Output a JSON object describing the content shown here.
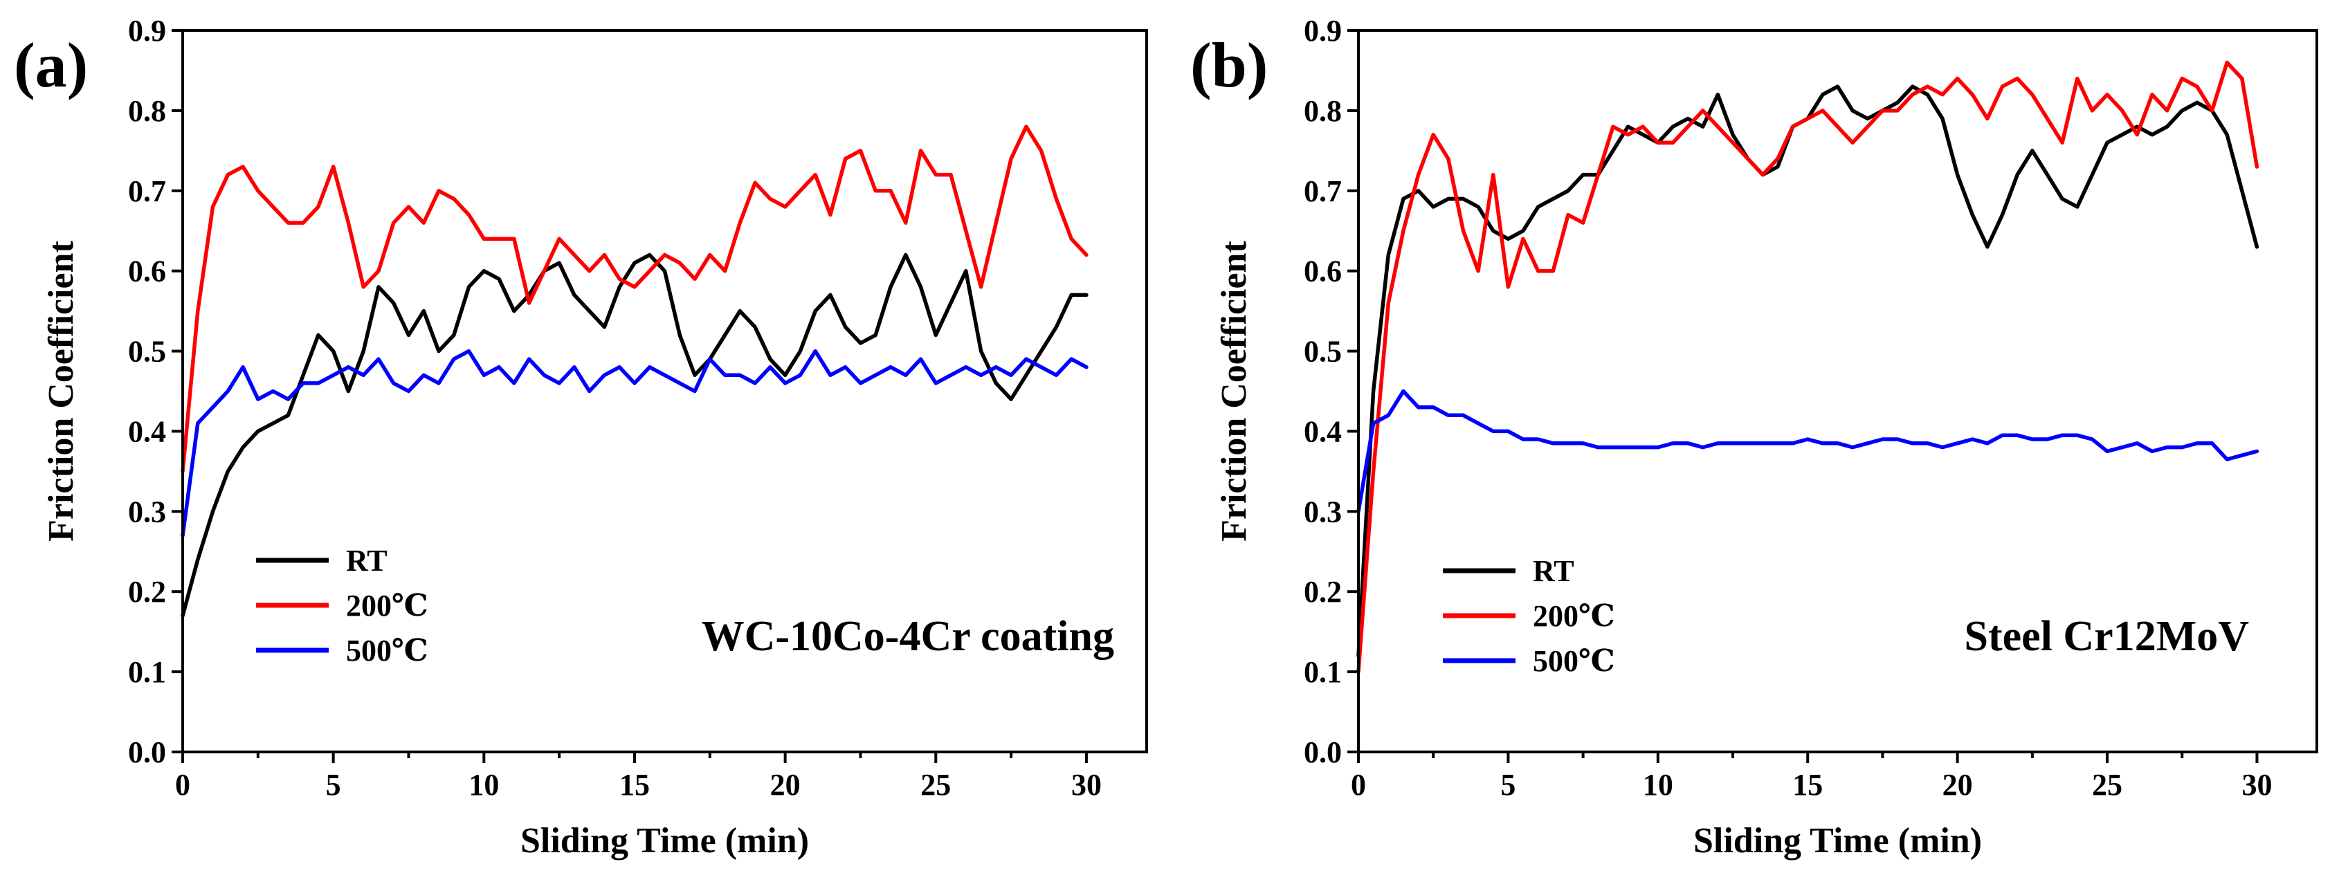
{
  "figure": {
    "panels": [
      "a",
      "b"
    ]
  },
  "chart_data": [
    {
      "type": "line",
      "panel_label": "(a)",
      "annotation": "WC-10Co-4Cr coating",
      "xlabel": "Sliding Time (min)",
      "ylabel": "Friction Coefficient",
      "xlim": [
        0,
        32
      ],
      "ylim": [
        0,
        0.9
      ],
      "xticks": [
        0,
        5,
        10,
        15,
        20,
        25,
        30
      ],
      "yticks": [
        0.0,
        0.1,
        0.2,
        0.3,
        0.4,
        0.5,
        0.6,
        0.7,
        0.8,
        0.9
      ],
      "ytick_labels": [
        "0.0",
        "0.1",
        "0.2",
        "0.3",
        "0.4",
        "0.5",
        "0.6",
        "0.7",
        "0.8",
        "0.9"
      ],
      "legend_position": "lower-left",
      "series": [
        {
          "name": "RT",
          "color": "#000000",
          "x": [
            0,
            0.5,
            1,
            1.5,
            2,
            2.5,
            3,
            3.5,
            4,
            4.5,
            5,
            5.5,
            6,
            6.5,
            7,
            7.5,
            8,
            8.5,
            9,
            9.5,
            10,
            10.5,
            11,
            11.5,
            12,
            12.5,
            13,
            13.5,
            14,
            14.5,
            15,
            15.5,
            16,
            16.5,
            17,
            17.5,
            18,
            18.5,
            19,
            19.5,
            20,
            20.5,
            21,
            21.5,
            22,
            22.5,
            23,
            23.5,
            24,
            24.5,
            25,
            25.5,
            26,
            26.5,
            27,
            27.5,
            28,
            28.5,
            29,
            29.5,
            30
          ],
          "y": [
            0.17,
            0.24,
            0.3,
            0.35,
            0.38,
            0.4,
            0.41,
            0.42,
            0.47,
            0.52,
            0.5,
            0.45,
            0.5,
            0.58,
            0.56,
            0.52,
            0.55,
            0.5,
            0.52,
            0.58,
            0.6,
            0.59,
            0.55,
            0.57,
            0.6,
            0.61,
            0.57,
            0.55,
            0.53,
            0.58,
            0.61,
            0.62,
            0.6,
            0.52,
            0.47,
            0.49,
            0.52,
            0.55,
            0.53,
            0.49,
            0.47,
            0.5,
            0.55,
            0.57,
            0.53,
            0.51,
            0.52,
            0.58,
            0.62,
            0.58,
            0.52,
            0.56,
            0.6,
            0.5,
            0.46,
            0.44,
            0.47,
            0.5,
            0.53,
            0.57,
            0.57
          ]
        },
        {
          "name": "200℃",
          "color": "#ff0000",
          "x": [
            0,
            0.5,
            1,
            1.5,
            2,
            2.5,
            3,
            3.5,
            4,
            4.5,
            5,
            5.5,
            6,
            6.5,
            7,
            7.5,
            8,
            8.5,
            9,
            9.5,
            10,
            10.5,
            11,
            11.5,
            12,
            12.5,
            13,
            13.5,
            14,
            14.5,
            15,
            15.5,
            16,
            16.5,
            17,
            17.5,
            18,
            18.5,
            19,
            19.5,
            20,
            20.5,
            21,
            21.5,
            22,
            22.5,
            23,
            23.5,
            24,
            24.5,
            25,
            25.5,
            26,
            26.5,
            27,
            27.5,
            28,
            28.5,
            29,
            29.5,
            30
          ],
          "y": [
            0.35,
            0.55,
            0.68,
            0.72,
            0.73,
            0.7,
            0.68,
            0.66,
            0.66,
            0.68,
            0.73,
            0.66,
            0.58,
            0.6,
            0.66,
            0.68,
            0.66,
            0.7,
            0.69,
            0.67,
            0.64,
            0.64,
            0.64,
            0.56,
            0.6,
            0.64,
            0.62,
            0.6,
            0.62,
            0.59,
            0.58,
            0.6,
            0.62,
            0.61,
            0.59,
            0.62,
            0.6,
            0.66,
            0.71,
            0.69,
            0.68,
            0.7,
            0.72,
            0.67,
            0.74,
            0.75,
            0.7,
            0.7,
            0.66,
            0.75,
            0.72,
            0.72,
            0.65,
            0.58,
            0.66,
            0.74,
            0.78,
            0.75,
            0.69,
            0.64,
            0.62
          ]
        },
        {
          "name": "500℃",
          "color": "#0000ff",
          "x": [
            0,
            0.5,
            1,
            1.5,
            2,
            2.5,
            3,
            3.5,
            4,
            4.5,
            5,
            5.5,
            6,
            6.5,
            7,
            7.5,
            8,
            8.5,
            9,
            9.5,
            10,
            10.5,
            11,
            11.5,
            12,
            12.5,
            13,
            13.5,
            14,
            14.5,
            15,
            15.5,
            16,
            16.5,
            17,
            17.5,
            18,
            18.5,
            19,
            19.5,
            20,
            20.5,
            21,
            21.5,
            22,
            22.5,
            23,
            23.5,
            24,
            24.5,
            25,
            25.5,
            26,
            26.5,
            27,
            27.5,
            28,
            28.5,
            29,
            29.5,
            30
          ],
          "y": [
            0.27,
            0.41,
            0.43,
            0.45,
            0.48,
            0.44,
            0.45,
            0.44,
            0.46,
            0.46,
            0.47,
            0.48,
            0.47,
            0.49,
            0.46,
            0.45,
            0.47,
            0.46,
            0.49,
            0.5,
            0.47,
            0.48,
            0.46,
            0.49,
            0.47,
            0.46,
            0.48,
            0.45,
            0.47,
            0.48,
            0.46,
            0.48,
            0.47,
            0.46,
            0.45,
            0.49,
            0.47,
            0.47,
            0.46,
            0.48,
            0.46,
            0.47,
            0.5,
            0.47,
            0.48,
            0.46,
            0.47,
            0.48,
            0.47,
            0.49,
            0.46,
            0.47,
            0.48,
            0.47,
            0.48,
            0.47,
            0.49,
            0.48,
            0.47,
            0.49,
            0.48
          ]
        }
      ]
    },
    {
      "type": "line",
      "panel_label": "(b)",
      "annotation": "Steel Cr12MoV",
      "xlabel": "Sliding Time (min)",
      "ylabel": "Friction Coefficient",
      "xlim": [
        0,
        32
      ],
      "ylim": [
        0,
        0.9
      ],
      "xticks": [
        0,
        5,
        10,
        15,
        20,
        25,
        30
      ],
      "yticks": [
        0.0,
        0.1,
        0.2,
        0.3,
        0.4,
        0.5,
        0.6,
        0.7,
        0.8,
        0.9
      ],
      "ytick_labels": [
        "0.0",
        "0.1",
        "0.2",
        "0.3",
        "0.4",
        "0.5",
        "0.6",
        "0.7",
        "0.8",
        "0.9"
      ],
      "legend_position": "lower-left",
      "series": [
        {
          "name": "RT",
          "color": "#000000",
          "x": [
            0,
            0.5,
            1,
            1.5,
            2,
            2.5,
            3,
            3.5,
            4,
            4.5,
            5,
            5.5,
            6,
            6.5,
            7,
            7.5,
            8,
            8.5,
            9,
            9.5,
            10,
            10.5,
            11,
            11.5,
            12,
            12.5,
            13,
            13.5,
            14,
            14.5,
            15,
            15.5,
            16,
            16.5,
            17,
            17.5,
            18,
            18.5,
            19,
            19.5,
            20,
            20.5,
            21,
            21.5,
            22,
            22.5,
            23,
            23.5,
            24,
            24.5,
            25,
            25.5,
            26,
            26.5,
            27,
            27.5,
            28,
            28.5,
            29,
            29.5,
            30
          ],
          "y": [
            0.12,
            0.45,
            0.62,
            0.69,
            0.7,
            0.68,
            0.69,
            0.69,
            0.68,
            0.65,
            0.64,
            0.65,
            0.68,
            0.69,
            0.7,
            0.72,
            0.72,
            0.75,
            0.78,
            0.77,
            0.76,
            0.78,
            0.79,
            0.78,
            0.82,
            0.77,
            0.74,
            0.72,
            0.73,
            0.78,
            0.79,
            0.82,
            0.83,
            0.8,
            0.79,
            0.8,
            0.81,
            0.83,
            0.82,
            0.79,
            0.72,
            0.67,
            0.63,
            0.67,
            0.72,
            0.75,
            0.72,
            0.69,
            0.68,
            0.72,
            0.76,
            0.77,
            0.78,
            0.77,
            0.78,
            0.8,
            0.81,
            0.8,
            0.77,
            0.7,
            0.63
          ]
        },
        {
          "name": "200℃",
          "color": "#ff0000",
          "x": [
            0,
            0.5,
            1,
            1.5,
            2,
            2.5,
            3,
            3.5,
            4,
            4.5,
            5,
            5.5,
            6,
            6.5,
            7,
            7.5,
            8,
            8.5,
            9,
            9.5,
            10,
            10.5,
            11,
            11.5,
            12,
            12.5,
            13,
            13.5,
            14,
            14.5,
            15,
            15.5,
            16,
            16.5,
            17,
            17.5,
            18,
            18.5,
            19,
            19.5,
            20,
            20.5,
            21,
            21.5,
            22,
            22.5,
            23,
            23.5,
            24,
            24.5,
            25,
            25.5,
            26,
            26.5,
            27,
            27.5,
            28,
            28.5,
            29,
            29.5,
            30
          ],
          "y": [
            0.1,
            0.35,
            0.56,
            0.65,
            0.72,
            0.77,
            0.74,
            0.65,
            0.6,
            0.72,
            0.58,
            0.64,
            0.6,
            0.6,
            0.67,
            0.66,
            0.72,
            0.78,
            0.77,
            0.78,
            0.76,
            0.76,
            0.78,
            0.8,
            0.78,
            0.76,
            0.74,
            0.72,
            0.74,
            0.78,
            0.79,
            0.8,
            0.78,
            0.76,
            0.78,
            0.8,
            0.8,
            0.82,
            0.83,
            0.82,
            0.84,
            0.82,
            0.79,
            0.83,
            0.84,
            0.82,
            0.79,
            0.76,
            0.84,
            0.8,
            0.82,
            0.8,
            0.77,
            0.82,
            0.8,
            0.84,
            0.83,
            0.8,
            0.86,
            0.84,
            0.73
          ]
        },
        {
          "name": "500℃",
          "color": "#0000ff",
          "x": [
            0,
            0.5,
            1,
            1.5,
            2,
            2.5,
            3,
            3.5,
            4,
            4.5,
            5,
            5.5,
            6,
            6.5,
            7,
            7.5,
            8,
            8.5,
            9,
            9.5,
            10,
            10.5,
            11,
            11.5,
            12,
            12.5,
            13,
            13.5,
            14,
            14.5,
            15,
            15.5,
            16,
            16.5,
            17,
            17.5,
            18,
            18.5,
            19,
            19.5,
            20,
            20.5,
            21,
            21.5,
            22,
            22.5,
            23,
            23.5,
            24,
            24.5,
            25,
            25.5,
            26,
            26.5,
            27,
            27.5,
            28,
            28.5,
            29,
            29.5,
            30
          ],
          "y": [
            0.3,
            0.41,
            0.42,
            0.45,
            0.43,
            0.43,
            0.42,
            0.42,
            0.41,
            0.4,
            0.4,
            0.39,
            0.39,
            0.385,
            0.385,
            0.385,
            0.38,
            0.38,
            0.38,
            0.38,
            0.38,
            0.385,
            0.385,
            0.38,
            0.385,
            0.385,
            0.385,
            0.385,
            0.385,
            0.385,
            0.39,
            0.385,
            0.385,
            0.38,
            0.385,
            0.39,
            0.39,
            0.385,
            0.385,
            0.38,
            0.385,
            0.39,
            0.385,
            0.395,
            0.395,
            0.39,
            0.39,
            0.395,
            0.395,
            0.39,
            0.375,
            0.38,
            0.385,
            0.375,
            0.38,
            0.38,
            0.385,
            0.385,
            0.365,
            0.37,
            0.375
          ]
        }
      ]
    }
  ]
}
